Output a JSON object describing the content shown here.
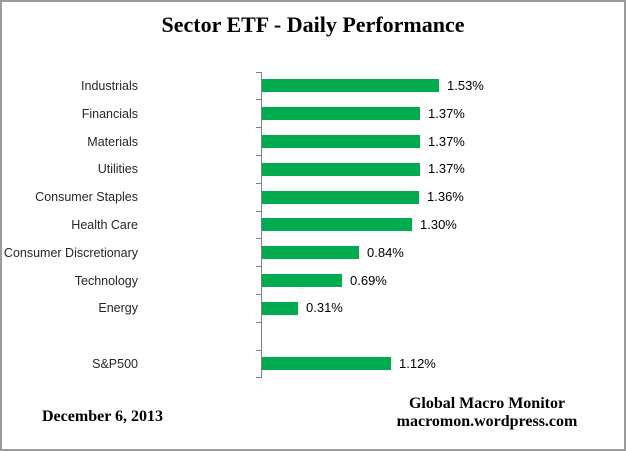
{
  "title": "Sector ETF - Daily Performance",
  "footer": {
    "date": "December 6, 2013",
    "source_line1": "Global Macro Monitor",
    "source_line2": "macromon.wordpress.com"
  },
  "chart_data": {
    "type": "bar",
    "orientation": "horizontal",
    "title": "Sector ETF - Daily Performance",
    "categories": [
      "Industrials",
      "Financials",
      "Materials",
      "Utilities",
      "Consumer Staples",
      "Health Care",
      "Consumer Discretionary",
      "Technology",
      "Energy",
      "",
      "S&P500"
    ],
    "values": [
      1.53,
      1.37,
      1.37,
      1.37,
      1.36,
      1.3,
      0.84,
      0.69,
      0.31,
      null,
      1.12
    ],
    "data_labels": [
      "1.53%",
      "1.37%",
      "1.37%",
      "1.37%",
      "1.36%",
      "1.30%",
      "0.84%",
      "0.69%",
      "0.31%",
      "",
      "1.12%"
    ],
    "xlabel": "",
    "ylabel": "",
    "xlim": [
      0,
      2
    ],
    "grid": false,
    "legend": "none",
    "value_axis_labels_visible": false,
    "bar_color": "#00AB50",
    "axis_color": "#808080",
    "label_color": "#262626"
  }
}
